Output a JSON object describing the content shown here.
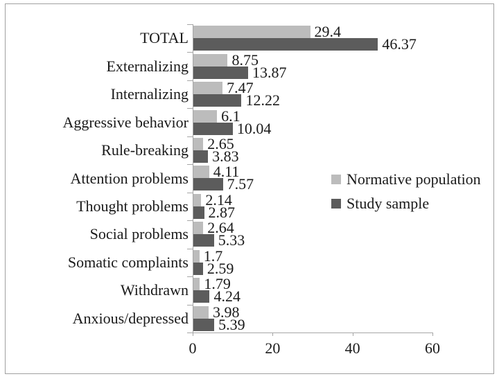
{
  "figure": {
    "background": "#ffffff",
    "border_color": "#a0a0a0"
  },
  "chart_data": {
    "type": "bar",
    "orientation": "horizontal",
    "title": "",
    "xlabel": "",
    "ylabel": "",
    "categories": [
      "TOTAL",
      "Externalizing",
      "Internalizing",
      "Aggressive behavior",
      "Rule-breaking",
      "Attention problems",
      "Thought problems",
      "Social problems",
      "Somatic complaints",
      "Withdrawn",
      "Anxious/depressed"
    ],
    "series": [
      {
        "name": "Normative population",
        "color": "#bcbcbc",
        "values": [
          29.4,
          8.75,
          7.47,
          6.1,
          2.65,
          4.11,
          2.14,
          2.64,
          1.7,
          1.79,
          3.98
        ],
        "value_labels": [
          "29.4",
          "8.75",
          "7.47",
          "6.1",
          "2.65",
          "4.11",
          "2.14",
          "2.64",
          "1.7",
          "1.79",
          "3.98"
        ]
      },
      {
        "name": "Study sample",
        "color": "#5c5c5c",
        "values": [
          46.37,
          13.87,
          12.22,
          10.04,
          3.83,
          7.57,
          2.87,
          5.33,
          2.59,
          4.24,
          5.39
        ],
        "value_labels": [
          "46.37",
          "13.87",
          "12.22",
          "10.04",
          "3.83",
          "7.57",
          "2.87",
          "5.33",
          "2.59",
          "4.24",
          "5.39"
        ]
      }
    ],
    "xlim": [
      0,
      60
    ],
    "x_ticks": [
      0,
      20,
      40,
      60
    ],
    "x_tick_labels": [
      "0",
      "20",
      "40",
      "60"
    ],
    "grid": false,
    "legend_position": "right-middle",
    "axis_color": "#a6a6a6",
    "text_color": "#1a1a1a"
  }
}
